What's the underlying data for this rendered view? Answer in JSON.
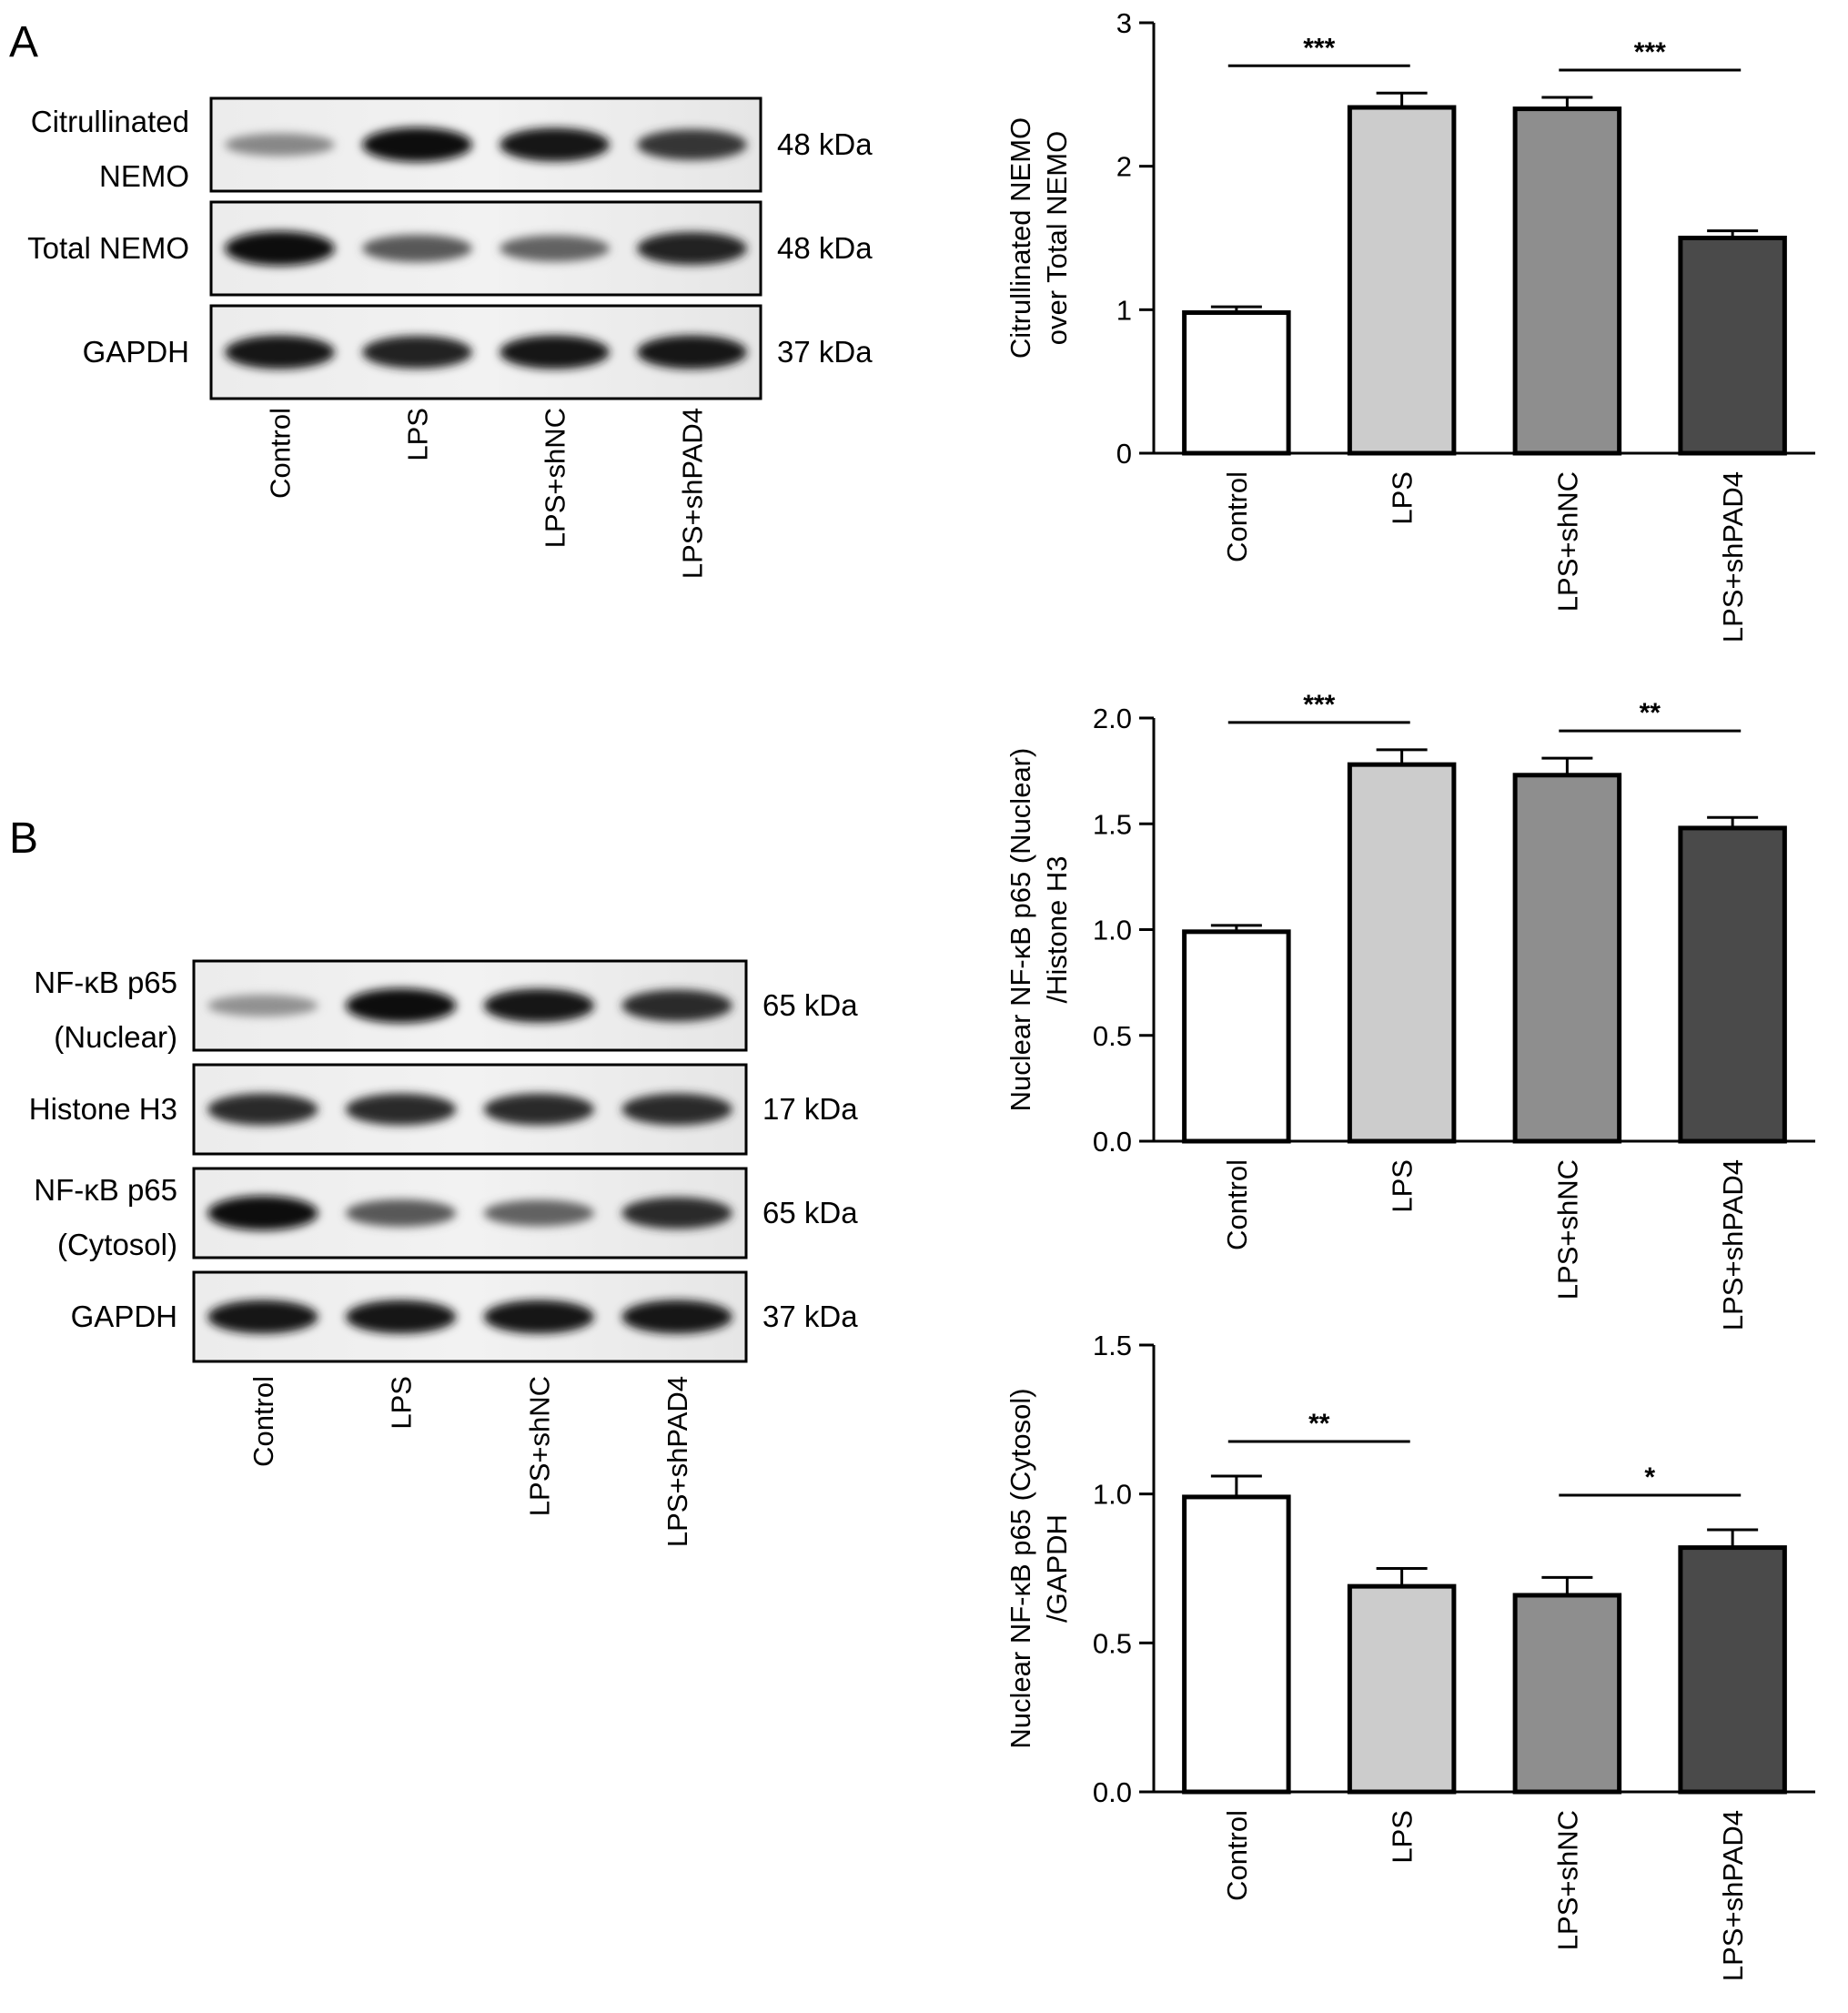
{
  "panels": [
    "A",
    "B"
  ],
  "blot_a": {
    "rows": [
      {
        "label_lines": [
          "Citrullinated",
          "NEMO"
        ],
        "kda": "48 kDa",
        "intensities": [
          0.35,
          1.0,
          0.95,
          0.8
        ]
      },
      {
        "label_lines": [
          "Total NEMO"
        ],
        "kda": "48 kDa",
        "intensities": [
          1.0,
          0.6,
          0.55,
          0.9
        ]
      },
      {
        "label_lines": [
          "GAPDH"
        ],
        "kda": "37 kDa",
        "intensities": [
          0.95,
          0.9,
          0.95,
          0.95
        ]
      }
    ],
    "lanes": [
      "Control",
      "LPS",
      "LPS+shNC",
      "LPS+shPAD4"
    ]
  },
  "blot_b": {
    "rows": [
      {
        "label_lines": [
          "NF-κB p65",
          "(Nuclear)"
        ],
        "kda": "65 kDa",
        "intensities": [
          0.3,
          1.0,
          0.95,
          0.85
        ]
      },
      {
        "label_lines": [
          "Histone H3"
        ],
        "kda": "17 kDa",
        "intensities": [
          0.85,
          0.85,
          0.85,
          0.85
        ]
      },
      {
        "label_lines": [
          "NF-κB p65",
          "(Cytosol)"
        ],
        "kda": "65 kDa",
        "intensities": [
          1.0,
          0.6,
          0.55,
          0.85
        ]
      },
      {
        "label_lines": [
          "GAPDH"
        ],
        "kda": "37 kDa",
        "intensities": [
          0.95,
          0.95,
          0.95,
          0.95
        ]
      }
    ],
    "lanes": [
      "Control",
      "LPS",
      "LPS+shNC",
      "LPS+shPAD4"
    ]
  },
  "chart_data": [
    {
      "type": "bar",
      "categories": [
        "Control",
        "LPS",
        "LPS+shNC",
        "LPS+shPAD4"
      ],
      "values": [
        0.98,
        2.41,
        2.4,
        1.5
      ],
      "errors": [
        0.04,
        0.1,
        0.08,
        0.05
      ],
      "colors": [
        "#ffffff",
        "#cccccc",
        "#8e8e8e",
        "#4a4a4a"
      ],
      "ylabel_lines": [
        "Citrullinated NEMO",
        "over Total NEMO"
      ],
      "ylim": [
        0,
        3
      ],
      "yticks": [
        "0",
        "1",
        "2",
        "3"
      ],
      "significance": [
        {
          "from": 0,
          "to": 1,
          "label": "***"
        },
        {
          "from": 2,
          "to": 3,
          "label": "***"
        }
      ]
    },
    {
      "type": "bar",
      "categories": [
        "Control",
        "LPS",
        "LPS+shNC",
        "LPS+shPAD4"
      ],
      "values": [
        0.99,
        1.78,
        1.73,
        1.48
      ],
      "errors": [
        0.03,
        0.07,
        0.08,
        0.05
      ],
      "colors": [
        "#ffffff",
        "#cccccc",
        "#8e8e8e",
        "#4a4a4a"
      ],
      "ylabel_lines": [
        "Nuclear NF-κB p65 (Nuclear)",
        "/Histone H3"
      ],
      "ylim": [
        0,
        2.0
      ],
      "yticks": [
        "0.0",
        "0.5",
        "1.0",
        "1.5",
        "2.0"
      ],
      "significance": [
        {
          "from": 0,
          "to": 1,
          "label": "***"
        },
        {
          "from": 2,
          "to": 3,
          "label": "**"
        }
      ]
    },
    {
      "type": "bar",
      "categories": [
        "Control",
        "LPS",
        "LPS+shNC",
        "LPS+shPAD4"
      ],
      "values": [
        0.99,
        0.69,
        0.66,
        0.82
      ],
      "errors": [
        0.07,
        0.06,
        0.06,
        0.06
      ],
      "colors": [
        "#ffffff",
        "#cccccc",
        "#8e8e8e",
        "#4a4a4a"
      ],
      "ylabel_lines": [
        "Nuclear NF-κB p65 (Cytosol)",
        "/GAPDH"
      ],
      "ylim": [
        0,
        1.5
      ],
      "yticks": [
        "0.0",
        "0.5",
        "1.0",
        "1.5"
      ],
      "significance": [
        {
          "from": 0,
          "to": 1,
          "label": "**"
        },
        {
          "from": 2,
          "to": 3,
          "label": "*"
        }
      ]
    }
  ]
}
